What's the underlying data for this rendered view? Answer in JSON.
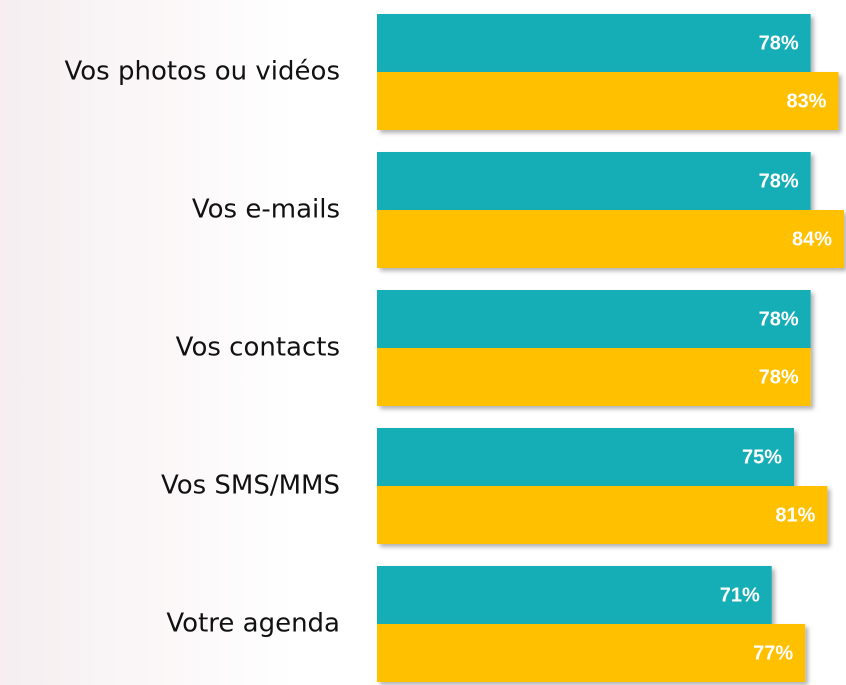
{
  "chart_data": {
    "type": "bar",
    "categories": [
      "Vos photos ou vidéos",
      "Vos e-mails",
      "Vos contacts",
      "Vos SMS/MMS",
      "Votre agenda"
    ],
    "series": [
      {
        "color": "#17aeb6",
        "values": [
          78,
          78,
          78,
          75,
          71
        ],
        "value_labels": [
          "78%",
          "78%",
          "78%",
          "75%",
          "71%"
        ]
      },
      {
        "color": "#ffc000",
        "values": [
          83,
          84,
          78,
          81,
          77
        ],
        "value_labels": [
          "83%",
          "84%",
          "78%",
          "81%",
          "77%"
        ]
      }
    ]
  }
}
